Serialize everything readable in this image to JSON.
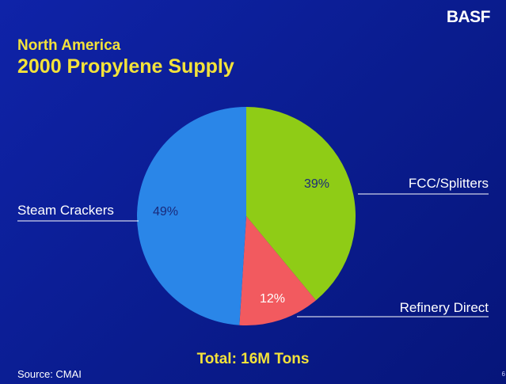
{
  "brand": "BASF",
  "footer": {
    "source": "Source: CMAI",
    "page": "6"
  },
  "chart_data": {
    "type": "pie",
    "subtitle": "North America",
    "title": "2000 Propylene Supply",
    "total_label": "Total: 16M Tons",
    "slices": [
      {
        "label": "FCC/Splitters",
        "value": 39,
        "value_label": "39%",
        "color": "#8fcc16"
      },
      {
        "label": "Refinery Direct",
        "value": 12,
        "value_label": "12%",
        "color": "#f25a5f"
      },
      {
        "label": "Steam Crackers",
        "value": 49,
        "value_label": "49%",
        "color": "#2a86e8"
      }
    ]
  }
}
